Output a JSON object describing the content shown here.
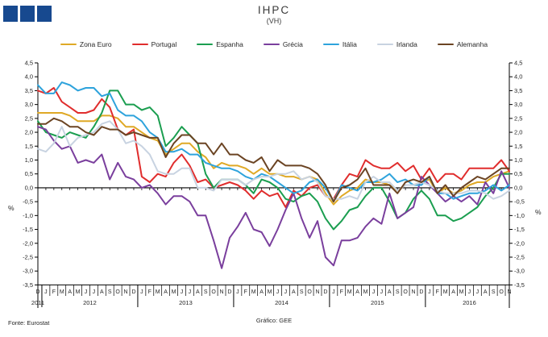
{
  "logo": {
    "block_color": "#17498F",
    "block_count": 3
  },
  "header": {
    "title": "IHPC",
    "subtitle": "(VH)"
  },
  "footer": {
    "source": "Fonte: Eurostat",
    "credit": "Gráfico: GEE"
  },
  "chart_data": {
    "type": "line",
    "title": "IHPC",
    "subtitle": "(VH)",
    "ylabel_left": "%",
    "ylabel_right": "%",
    "ylim": [
      -3.5,
      4.5
    ],
    "ytick_step": 0.5,
    "ytick_labels": [
      "4,5",
      "4,0",
      "3,5",
      "3,0",
      "2,5",
      "2,0",
      "1,5",
      "1,0",
      "0,5",
      "0,0",
      "-0,5",
      "-1,0",
      "-1,5",
      "-2,0",
      "-2,5",
      "-3,0",
      "-3,5"
    ],
    "grid": false,
    "legend_position": "top",
    "axis_color": "#000000",
    "x_months": [
      "D",
      "J",
      "F",
      "M",
      "A",
      "M",
      "J",
      "J",
      "A",
      "S",
      "O",
      "N",
      "D",
      "J",
      "F",
      "M",
      "A",
      "M",
      "J",
      "J",
      "A",
      "S",
      "O",
      "N",
      "D",
      "J",
      "F",
      "M",
      "A",
      "M",
      "J",
      "J",
      "A",
      "S",
      "O",
      "N",
      "D",
      "J",
      "F",
      "M",
      "A",
      "M",
      "J",
      "J",
      "A",
      "S",
      "O",
      "N",
      "D",
      "J",
      "F",
      "M",
      "A",
      "M",
      "J",
      "J",
      "A",
      "S",
      "O",
      "N"
    ],
    "x_years": [
      {
        "label": "2011",
        "start": 0,
        "end": 0
      },
      {
        "label": "2012",
        "start": 1,
        "end": 12
      },
      {
        "label": "2013",
        "start": 13,
        "end": 24
      },
      {
        "label": "2014",
        "start": 25,
        "end": 36
      },
      {
        "label": "2015",
        "start": 37,
        "end": 48
      },
      {
        "label": "2016",
        "start": 49,
        "end": 59
      }
    ],
    "series": [
      {
        "name": "Zona Euro",
        "color": "#DFA926",
        "values": [
          2.7,
          2.7,
          2.7,
          2.7,
          2.6,
          2.4,
          2.4,
          2.4,
          2.6,
          2.6,
          2.5,
          2.2,
          2.2,
          2.0,
          1.8,
          1.7,
          1.2,
          1.4,
          1.6,
          1.6,
          1.3,
          1.1,
          0.7,
          0.9,
          0.8,
          0.8,
          0.7,
          0.5,
          0.7,
          0.5,
          0.5,
          0.4,
          0.4,
          0.3,
          0.4,
          0.3,
          -0.2,
          -0.6,
          -0.3,
          -0.1,
          0.0,
          0.3,
          0.2,
          0.2,
          0.1,
          -0.1,
          0.1,
          0.1,
          0.2,
          0.3,
          -0.2,
          0.0,
          -0.2,
          -0.1,
          0.1,
          0.2,
          0.2,
          0.4,
          0.5,
          0.6
        ]
      },
      {
        "name": "Portugal",
        "color": "#E02D2D",
        "values": [
          3.5,
          3.4,
          3.6,
          3.1,
          2.9,
          2.7,
          2.7,
          2.8,
          3.2,
          2.9,
          2.1,
          1.9,
          2.1,
          0.4,
          0.2,
          0.5,
          0.4,
          0.9,
          1.2,
          0.8,
          0.2,
          0.3,
          0.0,
          0.1,
          0.2,
          0.1,
          -0.1,
          -0.4,
          -0.1,
          -0.3,
          -0.2,
          -0.7,
          -0.1,
          -0.3,
          0.0,
          0.1,
          -0.3,
          -0.4,
          0.1,
          0.5,
          0.4,
          1.0,
          0.8,
          0.7,
          0.7,
          0.9,
          0.6,
          0.8,
          0.3,
          0.7,
          0.2,
          0.5,
          0.5,
          0.3,
          0.7,
          0.7,
          0.7,
          0.7,
          1.0,
          0.6
        ]
      },
      {
        "name": "Espanha",
        "color": "#1B9E50",
        "values": [
          2.4,
          2.0,
          1.9,
          1.8,
          2.0,
          1.9,
          1.8,
          2.2,
          2.7,
          3.5,
          3.5,
          3.0,
          3.0,
          2.8,
          2.9,
          2.6,
          1.5,
          1.8,
          2.2,
          1.9,
          1.6,
          0.5,
          0.0,
          0.3,
          0.3,
          0.3,
          0.1,
          -0.2,
          0.3,
          0.2,
          0.0,
          -0.4,
          -0.5,
          -0.3,
          -0.2,
          -0.5,
          -1.1,
          -1.5,
          -1.2,
          -0.8,
          -0.7,
          -0.3,
          0.0,
          0.0,
          -0.5,
          -1.1,
          -0.9,
          -0.4,
          -0.1,
          -0.4,
          -1.0,
          -1.0,
          -1.2,
          -1.1,
          -0.9,
          -0.7,
          -0.3,
          0.0,
          0.5,
          0.5
        ]
      },
      {
        "name": "Grécia",
        "color": "#7A3F9D",
        "values": [
          2.2,
          2.1,
          1.7,
          1.4,
          1.5,
          0.9,
          1.0,
          0.9,
          1.2,
          0.3,
          0.9,
          0.4,
          0.3,
          0.0,
          0.1,
          -0.2,
          -0.6,
          -0.3,
          -0.3,
          -0.5,
          -1.0,
          -1.0,
          -1.9,
          -2.9,
          -1.8,
          -1.4,
          -0.9,
          -1.5,
          -1.6,
          -2.1,
          -1.5,
          -0.8,
          -0.2,
          -1.1,
          -1.8,
          -1.2,
          -2.5,
          -2.8,
          -1.9,
          -1.9,
          -1.8,
          -1.4,
          -1.1,
          -1.3,
          -0.2,
          -1.1,
          -0.9,
          -0.7,
          0.4,
          0.1,
          -0.2,
          -0.5,
          -0.3,
          -0.5,
          -0.3,
          -0.6,
          0.2,
          -0.2,
          0.6,
          0.0
        ]
      },
      {
        "name": "Itália",
        "color": "#2EA3DC",
        "values": [
          3.7,
          3.4,
          3.4,
          3.8,
          3.7,
          3.5,
          3.6,
          3.6,
          3.3,
          3.4,
          2.8,
          2.6,
          2.6,
          2.4,
          2.0,
          1.8,
          1.3,
          1.3,
          1.4,
          1.2,
          1.2,
          0.9,
          0.8,
          0.7,
          0.7,
          0.6,
          0.4,
          0.3,
          0.5,
          0.4,
          0.2,
          0.0,
          -0.2,
          -0.1,
          0.2,
          0.3,
          0.0,
          -0.5,
          0.1,
          0.0,
          -0.1,
          0.2,
          0.2,
          0.3,
          0.5,
          0.2,
          0.3,
          0.1,
          0.1,
          0.4,
          -0.2,
          -0.2,
          -0.4,
          -0.3,
          -0.2,
          -0.2,
          -0.1,
          0.1,
          -0.1,
          0.1
        ]
      },
      {
        "name": "Irlanda",
        "color": "#C8D3E1",
        "values": [
          1.4,
          1.3,
          1.6,
          2.2,
          1.5,
          1.8,
          1.9,
          2.0,
          2.3,
          2.4,
          2.1,
          1.6,
          1.7,
          1.5,
          1.2,
          0.6,
          0.5,
          0.5,
          0.7,
          0.7,
          0.0,
          0.0,
          -0.1,
          0.3,
          0.3,
          0.3,
          0.1,
          0.3,
          0.4,
          0.4,
          0.5,
          0.5,
          0.6,
          0.3,
          0.4,
          0.2,
          -0.3,
          -0.4,
          -0.4,
          -0.3,
          -0.4,
          0.2,
          0.4,
          0.2,
          0.2,
          -0.1,
          0.1,
          0.1,
          0.2,
          0.1,
          -0.1,
          -0.2,
          -0.2,
          -0.2,
          -0.1,
          -0.1,
          -0.2,
          -0.4,
          -0.3,
          -0.1
        ]
      },
      {
        "name": "Alemanha",
        "color": "#6B4423",
        "values": [
          2.3,
          2.3,
          2.5,
          2.4,
          2.2,
          2.2,
          2.0,
          1.9,
          2.2,
          2.1,
          2.1,
          1.9,
          2.0,
          1.9,
          1.8,
          1.8,
          1.1,
          1.6,
          1.9,
          1.9,
          1.6,
          1.6,
          1.2,
          1.6,
          1.2,
          1.2,
          1.0,
          0.9,
          1.1,
          0.6,
          1.0,
          0.8,
          0.8,
          0.8,
          0.7,
          0.5,
          0.1,
          -0.5,
          0.0,
          0.1,
          0.3,
          0.7,
          0.1,
          0.1,
          0.1,
          -0.2,
          0.2,
          0.3,
          0.2,
          0.4,
          -0.2,
          0.1,
          -0.3,
          0.0,
          0.2,
          0.4,
          0.3,
          0.5,
          0.7,
          0.7
        ]
      }
    ]
  }
}
